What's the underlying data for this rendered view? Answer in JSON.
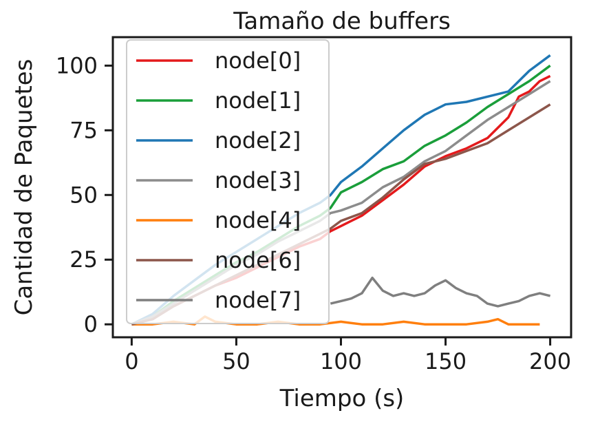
{
  "chart_data": {
    "type": "line",
    "title": "Tamaño de buffers",
    "xlabel": "Tiempo (s)",
    "ylabel": "Cantidad de Paquetes",
    "xlim": [
      -9,
      210
    ],
    "ylim": [
      -5,
      111
    ],
    "xticks": [
      0,
      50,
      100,
      150,
      200
    ],
    "yticks": [
      0,
      25,
      50,
      75,
      100
    ],
    "legend_position": "upper-left",
    "series": [
      {
        "name": "node[0]",
        "color": "#e41a1c",
        "x": [
          0,
          10,
          20,
          30,
          40,
          50,
          60,
          70,
          80,
          90,
          95,
          100,
          110,
          120,
          130,
          140,
          150,
          160,
          170,
          180,
          185,
          190,
          195,
          200
        ],
        "y": [
          0,
          2,
          7,
          11,
          15,
          18,
          22,
          26,
          30,
          33,
          36,
          38,
          42,
          48,
          54,
          61,
          65,
          68,
          72,
          80,
          88,
          90,
          94,
          96
        ]
      },
      {
        "name": "node[1]",
        "color": "#1a9e3a",
        "x": [
          0,
          10,
          20,
          30,
          40,
          50,
          60,
          70,
          80,
          90,
          95,
          100,
          110,
          120,
          130,
          140,
          150,
          160,
          170,
          180,
          190,
          200
        ],
        "y": [
          0,
          3,
          9,
          14,
          19,
          24,
          28,
          33,
          38,
          42,
          45,
          51,
          55,
          60,
          63,
          69,
          73,
          78,
          84,
          89,
          94,
          100
        ]
      },
      {
        "name": "node[2]",
        "color": "#1f77b4",
        "x": [
          0,
          10,
          20,
          30,
          40,
          50,
          60,
          70,
          80,
          90,
          95,
          100,
          110,
          120,
          130,
          140,
          150,
          160,
          170,
          180,
          190,
          200
        ],
        "y": [
          0,
          4,
          11,
          17,
          23,
          28,
          33,
          38,
          43,
          47,
          50,
          55,
          61,
          68,
          75,
          81,
          85,
          86,
          88,
          90,
          98,
          104
        ]
      },
      {
        "name": "node[3]",
        "color": "#8c8c8c",
        "x": [
          0,
          10,
          20,
          30,
          40,
          50,
          60,
          70,
          80,
          90,
          95,
          100,
          110,
          120,
          130,
          140,
          150,
          160,
          170,
          180,
          190,
          200
        ],
        "y": [
          0,
          3,
          8,
          13,
          18,
          23,
          27,
          32,
          36,
          40,
          43,
          44,
          47,
          53,
          57,
          63,
          67,
          73,
          79,
          84,
          89,
          94
        ]
      },
      {
        "name": "node[4]",
        "color": "#ff7f0e",
        "x": [
          0,
          10,
          20,
          30,
          35,
          40,
          50,
          60,
          70,
          80,
          90,
          100,
          110,
          120,
          130,
          140,
          150,
          160,
          170,
          175,
          180,
          190,
          195
        ],
        "y": [
          0,
          0,
          1,
          0,
          3,
          1,
          0,
          0,
          1,
          0,
          0,
          1,
          0,
          0,
          1,
          0,
          0,
          0,
          1,
          2,
          0,
          0,
          0
        ]
      },
      {
        "name": "node[6]",
        "color": "#8c564b",
        "x": [
          0,
          10,
          20,
          30,
          40,
          50,
          60,
          70,
          80,
          90,
          95,
          100,
          110,
          120,
          130,
          140,
          150,
          160,
          170,
          180,
          190,
          200
        ],
        "y": [
          0,
          2,
          7,
          11,
          15,
          19,
          23,
          27,
          31,
          35,
          37,
          40,
          43,
          49,
          56,
          62,
          64,
          67,
          70,
          75,
          80,
          85
        ]
      },
      {
        "name": "node[7]",
        "color": "#7f7f7f",
        "x": [
          95,
          100,
          105,
          110,
          115,
          120,
          125,
          130,
          135,
          140,
          145,
          150,
          155,
          160,
          165,
          170,
          175,
          180,
          185,
          190,
          195,
          200
        ],
        "y": [
          8,
          9,
          10,
          12,
          18,
          13,
          11,
          12,
          11,
          12,
          15,
          17,
          14,
          12,
          11,
          8,
          7,
          8,
          9,
          11,
          12,
          11
        ]
      }
    ]
  }
}
